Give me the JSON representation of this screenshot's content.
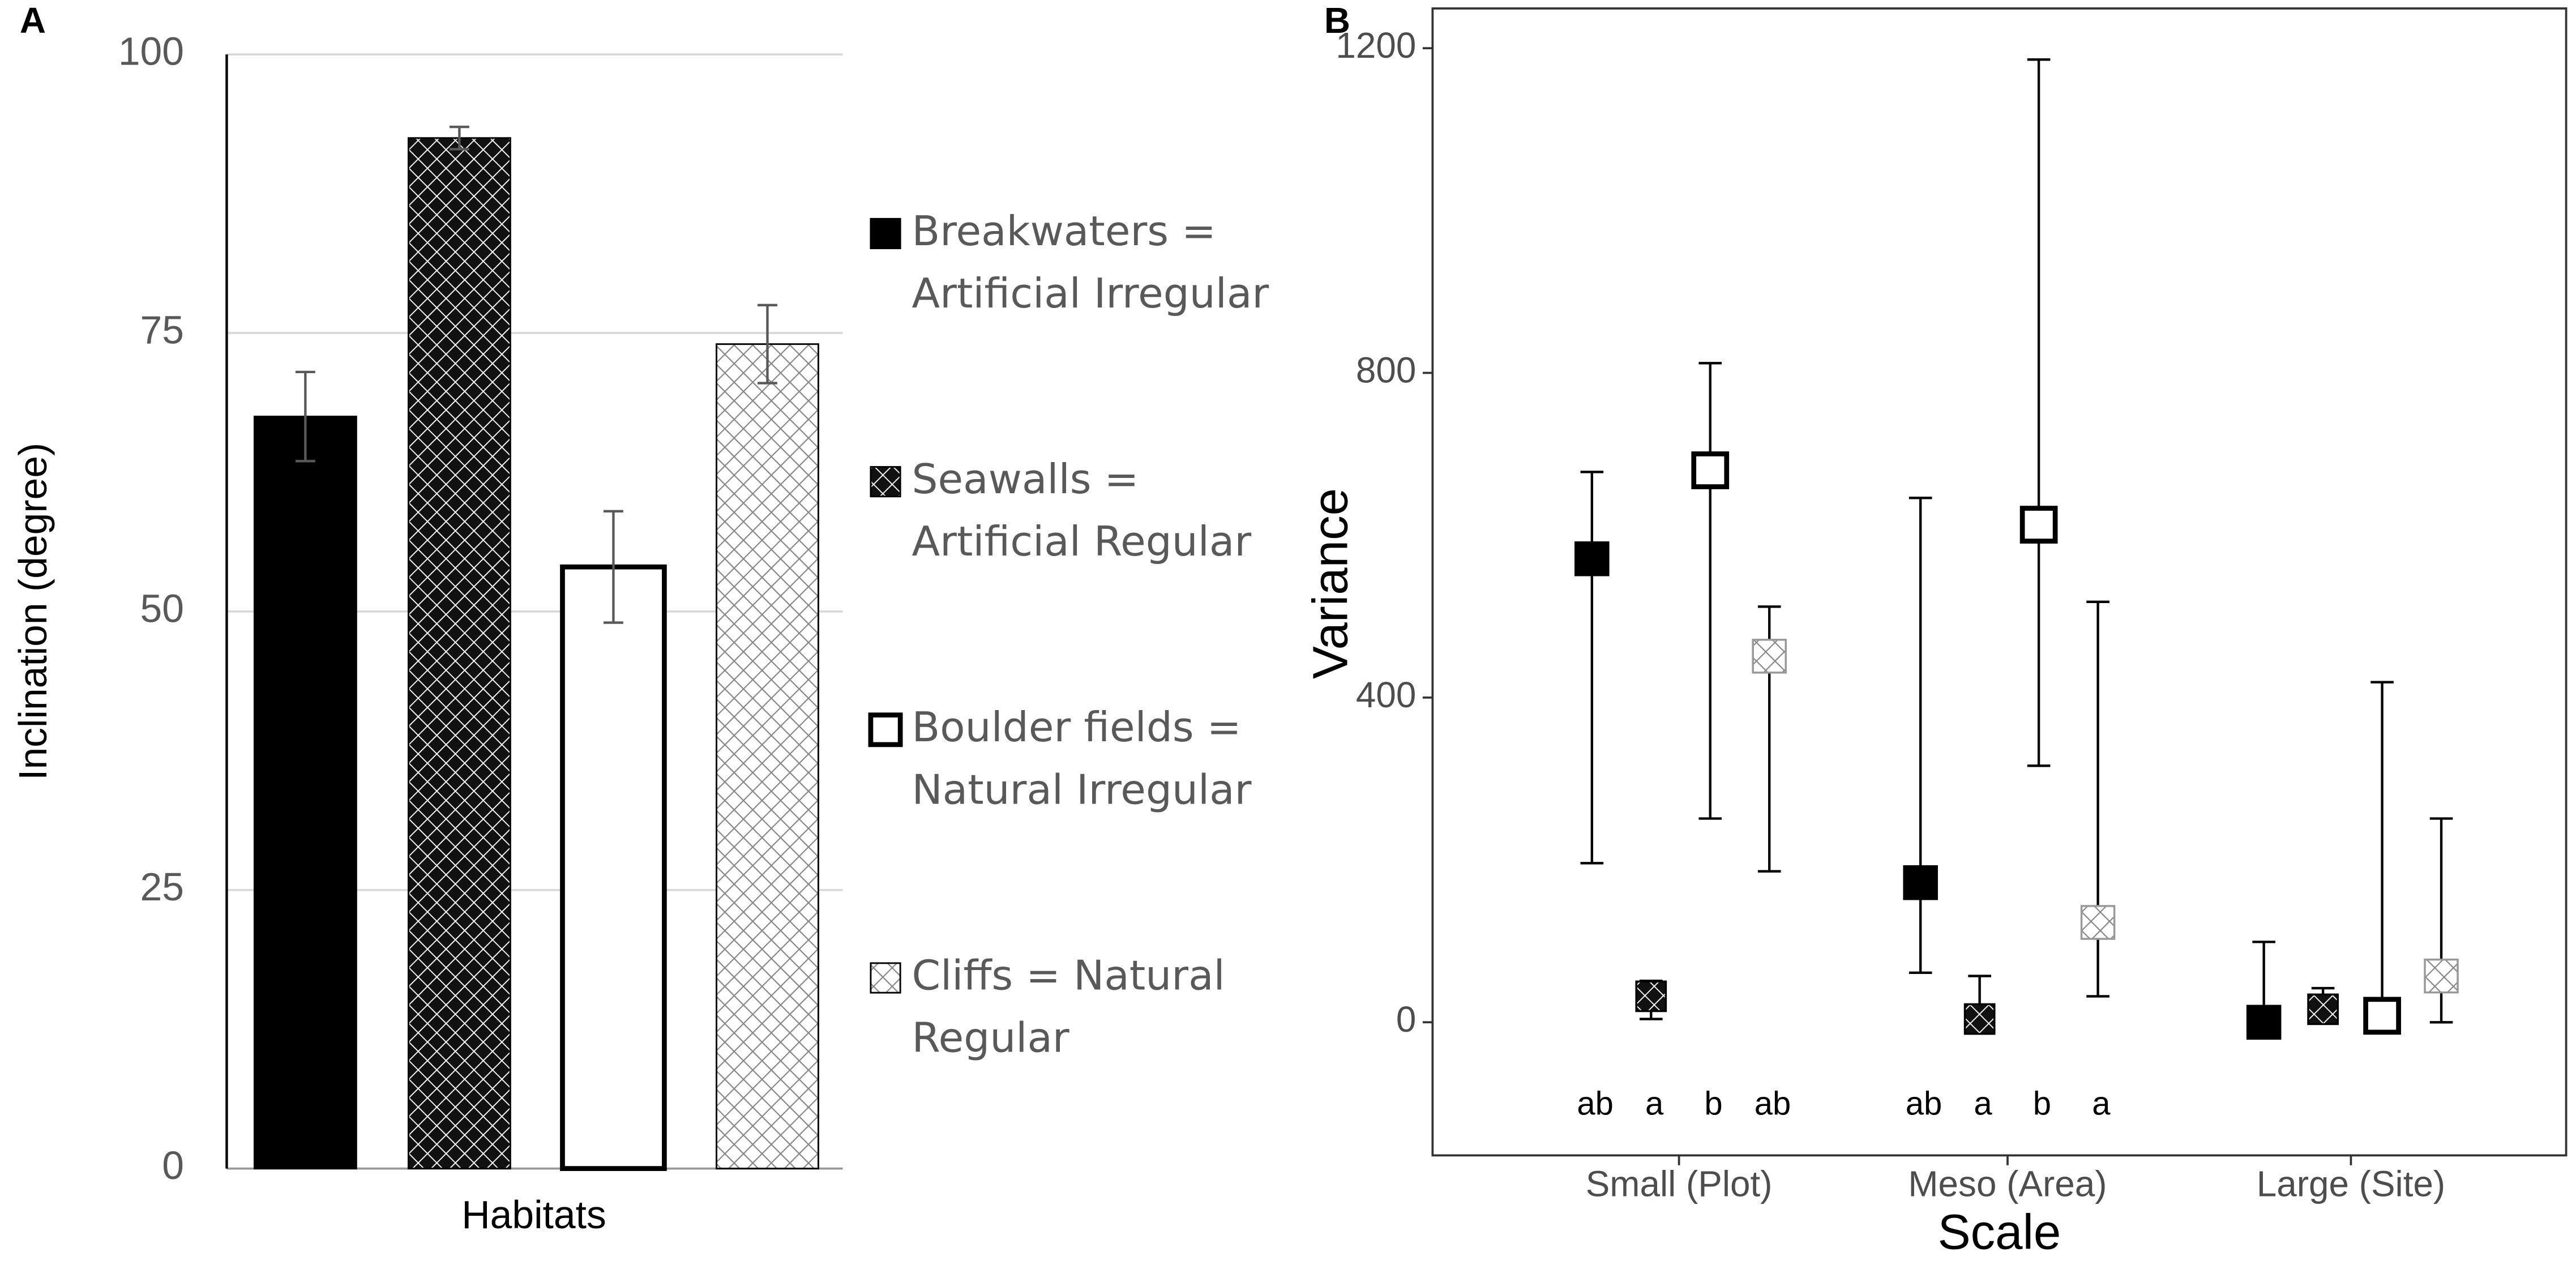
{
  "chart_data": [
    {
      "type": "bar",
      "panel": "A",
      "y_label": "Inclination (degree)",
      "x_label": "Habitats",
      "ylim": [
        0,
        100
      ],
      "yticks": [
        0,
        25,
        50,
        75,
        100
      ],
      "grid": true,
      "series": [
        {
          "name": "Breakwaters = Artificial Irregular",
          "color": "#000000",
          "pattern": "solid",
          "values": [
            67.5
          ],
          "errors": [
            4
          ]
        },
        {
          "name": "Seawalls = Artificial Regular",
          "color": "#000000",
          "pattern": "dark-hatch",
          "values": [
            92.5
          ],
          "errors": [
            1
          ]
        },
        {
          "name": "Boulder fields = Natural Irregular",
          "color": "#ffffff",
          "pattern": "outline",
          "values": [
            54
          ],
          "errors": [
            5
          ]
        },
        {
          "name": "Cliffs = Natural Regular",
          "color": "#ffffff",
          "pattern": "light-hatch",
          "values": [
            74
          ],
          "errors": [
            3.5
          ]
        }
      ]
    },
    {
      "type": "interval",
      "panel": "B",
      "y_label": "Variance",
      "x_label": "Scale",
      "categories": [
        "Small (Plot)",
        "Meso (Area)",
        "Large (Site)"
      ],
      "ylim": [
        -164,
        1249
      ],
      "yticks": [
        0,
        400,
        800,
        1200
      ],
      "series": [
        {
          "name": "Breakwaters",
          "color": "#000000",
          "pattern": "solid",
          "values": [
            571,
            172,
            0
          ],
          "lower": [
            196,
            61,
            0
          ],
          "upper": [
            678,
            646,
            99
          ],
          "labels": [
            "ab",
            "ab",
            null
          ]
        },
        {
          "name": "Seawalls",
          "color": "#000000",
          "pattern": "dark-hatch",
          "values": [
            32,
            4,
            16
          ],
          "lower": [
            4,
            0,
            10
          ],
          "upper": [
            51,
            57,
            42
          ],
          "labels": [
            "a",
            "a",
            null
          ]
        },
        {
          "name": "Boulder fields",
          "color": "#ffffff",
          "pattern": "outline",
          "values": [
            680,
            613,
            8
          ],
          "lower": [
            251,
            316,
            0
          ],
          "upper": [
            812,
            1186,
            419
          ],
          "labels": [
            "b",
            "b",
            null
          ]
        },
        {
          "name": "Cliffs",
          "color": "#ffffff",
          "pattern": "light-hatch",
          "values": [
            451,
            123,
            57
          ],
          "lower": [
            186,
            32,
            0
          ],
          "upper": [
            512,
            518,
            251
          ],
          "labels": [
            "ab",
            "a",
            null
          ]
        }
      ]
    }
  ]
}
